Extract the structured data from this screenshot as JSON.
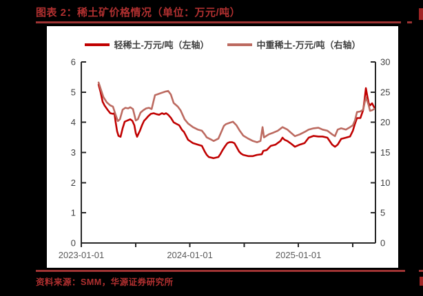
{
  "page": {
    "title": "图表 2：稀土矿价格情况（单位：万元/吨）",
    "source": "资料来源：SMM，华源证券研究所",
    "accent_color": "#b13030",
    "rule_color": "#9e3333",
    "panel_background": "#ffffff",
    "page_background": "#000000"
  },
  "chart_data": {
    "type": "line",
    "title": "稀土矿价格情况（单位：万元/吨）",
    "legend_position": "top",
    "grid": false,
    "x_range": [
      2023.0,
      2025.71
    ],
    "x_ticks": [
      {
        "t": 2023.0,
        "label": "2023-01-01"
      },
      {
        "t": 2023.5,
        "label": ""
      },
      {
        "t": 2024.0,
        "label": "2024-01-01"
      },
      {
        "t": 2024.5,
        "label": ""
      },
      {
        "t": 2025.0,
        "label": "2025-01-01"
      },
      {
        "t": 2025.5,
        "label": ""
      }
    ],
    "ylim_left": [
      0,
      6
    ],
    "y_left_ticks": [
      0,
      1,
      2,
      3,
      4,
      5,
      6
    ],
    "ylim_right": [
      0,
      30
    ],
    "y_right_ticks": [
      0,
      5,
      10,
      15,
      20,
      25,
      30
    ],
    "axis_color": "#262626",
    "y_label_color": "#3f3f3f",
    "x_label_color": "#595959",
    "series": [
      {
        "name": "轻稀土-万元/吨（左轴）",
        "axis": "left",
        "color": "#c00000",
        "points": [
          [
            2023.159,
            5.25
          ],
          [
            2023.178,
            5.0
          ],
          [
            2023.197,
            4.68
          ],
          [
            2023.216,
            4.55
          ],
          [
            2023.241,
            4.42
          ],
          [
            2023.267,
            4.3
          ],
          [
            2023.292,
            4.28
          ],
          [
            2023.305,
            4.3
          ],
          [
            2023.317,
            4.0
          ],
          [
            2023.33,
            3.7
          ],
          [
            2023.343,
            3.55
          ],
          [
            2023.362,
            3.52
          ],
          [
            2023.381,
            3.8
          ],
          [
            2023.4,
            4.02
          ],
          [
            2023.425,
            4.06
          ],
          [
            2023.451,
            4.1
          ],
          [
            2023.47,
            4.05
          ],
          [
            2023.489,
            3.9
          ],
          [
            2023.502,
            3.64
          ],
          [
            2023.514,
            3.52
          ],
          [
            2023.527,
            3.62
          ],
          [
            2023.54,
            3.72
          ],
          [
            2023.559,
            3.9
          ],
          [
            2023.578,
            4.05
          ],
          [
            2023.597,
            4.12
          ],
          [
            2023.616,
            4.2
          ],
          [
            2023.641,
            4.28
          ],
          [
            2023.667,
            4.3
          ],
          [
            2023.692,
            4.27
          ],
          [
            2023.717,
            4.25
          ],
          [
            2023.743,
            4.3
          ],
          [
            2023.762,
            4.27
          ],
          [
            2023.781,
            4.3
          ],
          [
            2023.8,
            4.25
          ],
          [
            2023.825,
            4.15
          ],
          [
            2023.851,
            4.0
          ],
          [
            2023.876,
            3.95
          ],
          [
            2023.902,
            3.9
          ],
          [
            2023.927,
            3.75
          ],
          [
            2023.946,
            3.68
          ],
          [
            2023.984,
            3.42
          ],
          [
            2024.029,
            3.31
          ],
          [
            2024.073,
            3.26
          ],
          [
            2024.111,
            3.22
          ],
          [
            2024.137,
            3.03
          ],
          [
            2024.156,
            2.92
          ],
          [
            2024.175,
            2.85
          ],
          [
            2024.219,
            2.81
          ],
          [
            2024.263,
            2.85
          ],
          [
            2024.283,
            2.96
          ],
          [
            2024.302,
            3.08
          ],
          [
            2024.327,
            3.22
          ],
          [
            2024.346,
            3.31
          ],
          [
            2024.365,
            3.34
          ],
          [
            2024.39,
            3.34
          ],
          [
            2024.41,
            3.31
          ],
          [
            2024.429,
            3.19
          ],
          [
            2024.454,
            3.03
          ],
          [
            2024.473,
            2.96
          ],
          [
            2024.492,
            2.92
          ],
          [
            2024.537,
            2.88
          ],
          [
            2024.581,
            2.88
          ],
          [
            2024.619,
            2.92
          ],
          [
            2024.663,
            2.94
          ],
          [
            2024.676,
            3.05
          ],
          [
            2024.708,
            3.08
          ],
          [
            2024.746,
            3.22
          ],
          [
            2024.79,
            3.26
          ],
          [
            2024.835,
            3.38
          ],
          [
            2024.854,
            3.49
          ],
          [
            2024.873,
            3.42
          ],
          [
            2024.898,
            3.38
          ],
          [
            2024.93,
            3.3
          ],
          [
            2024.968,
            3.19
          ],
          [
            2025.013,
            3.26
          ],
          [
            2025.057,
            3.31
          ],
          [
            2025.095,
            3.49
          ],
          [
            2025.14,
            3.55
          ],
          [
            2025.184,
            3.53
          ],
          [
            2025.222,
            3.53
          ],
          [
            2025.267,
            3.49
          ],
          [
            2025.311,
            3.26
          ],
          [
            2025.337,
            3.19
          ],
          [
            2025.362,
            3.26
          ],
          [
            2025.394,
            3.45
          ],
          [
            2025.438,
            3.49
          ],
          [
            2025.476,
            3.53
          ],
          [
            2025.502,
            3.72
          ],
          [
            2025.521,
            3.95
          ],
          [
            2025.54,
            4.14
          ],
          [
            2025.571,
            4.14
          ],
          [
            2025.597,
            4.41
          ],
          [
            2025.61,
            4.75
          ],
          [
            2025.622,
            5.13
          ],
          [
            2025.635,
            4.86
          ],
          [
            2025.648,
            4.63
          ],
          [
            2025.66,
            4.56
          ],
          [
            2025.679,
            4.63
          ],
          [
            2025.698,
            4.5
          ]
        ]
      },
      {
        "name": "中重稀土-万元/吨（右轴）",
        "axis": "right",
        "color": "#bc6a60",
        "points": [
          [
            2023.159,
            26.6
          ],
          [
            2023.178,
            25.6
          ],
          [
            2023.203,
            24.2
          ],
          [
            2023.235,
            23.3
          ],
          [
            2023.267,
            22.8
          ],
          [
            2023.292,
            22.6
          ],
          [
            2023.317,
            21.2
          ],
          [
            2023.337,
            20.2
          ],
          [
            2023.356,
            20.5
          ],
          [
            2023.381,
            22.1
          ],
          [
            2023.406,
            22.4
          ],
          [
            2023.432,
            22.3
          ],
          [
            2023.451,
            22.5
          ],
          [
            2023.476,
            22.2
          ],
          [
            2023.502,
            20.3
          ],
          [
            2023.521,
            20.5
          ],
          [
            2023.546,
            21.6
          ],
          [
            2023.571,
            22.0
          ],
          [
            2023.597,
            22.3
          ],
          [
            2023.622,
            22.4
          ],
          [
            2023.648,
            22.2
          ],
          [
            2023.679,
            24.5
          ],
          [
            2023.711,
            24.7
          ],
          [
            2023.743,
            24.9
          ],
          [
            2023.775,
            25.1
          ],
          [
            2023.8,
            25.2
          ],
          [
            2023.825,
            24.6
          ],
          [
            2023.851,
            23.2
          ],
          [
            2023.889,
            22.6
          ],
          [
            2023.914,
            22.0
          ],
          [
            2023.952,
            20.5
          ],
          [
            2023.984,
            19.8
          ],
          [
            2024.029,
            19.2
          ],
          [
            2024.073,
            18.8
          ],
          [
            2024.111,
            18.6
          ],
          [
            2024.137,
            18.0
          ],
          [
            2024.156,
            17.5
          ],
          [
            2024.2,
            17.1
          ],
          [
            2024.219,
            16.9
          ],
          [
            2024.263,
            17.3
          ],
          [
            2024.295,
            18.6
          ],
          [
            2024.314,
            19.4
          ],
          [
            2024.333,
            19.7
          ],
          [
            2024.365,
            19.9
          ],
          [
            2024.397,
            20.1
          ],
          [
            2024.429,
            19.5
          ],
          [
            2024.46,
            18.6
          ],
          [
            2024.492,
            17.8
          ],
          [
            2024.537,
            17.3
          ],
          [
            2024.581,
            16.9
          ],
          [
            2024.619,
            16.7
          ],
          [
            2024.651,
            16.9
          ],
          [
            2024.67,
            19.2
          ],
          [
            2024.683,
            17.5
          ],
          [
            2024.727,
            18.0
          ],
          [
            2024.771,
            18.3
          ],
          [
            2024.81,
            18.6
          ],
          [
            2024.854,
            19.2
          ],
          [
            2024.898,
            18.8
          ],
          [
            2024.93,
            18.3
          ],
          [
            2024.968,
            17.7
          ],
          [
            2025.013,
            18.0
          ],
          [
            2025.057,
            18.4
          ],
          [
            2025.095,
            18.8
          ],
          [
            2025.14,
            19.0
          ],
          [
            2025.184,
            19.1
          ],
          [
            2025.222,
            18.8
          ],
          [
            2025.267,
            18.6
          ],
          [
            2025.311,
            18.0
          ],
          [
            2025.337,
            17.7
          ],
          [
            2025.362,
            18.8
          ],
          [
            2025.394,
            19.0
          ],
          [
            2025.438,
            18.8
          ],
          [
            2025.476,
            19.2
          ],
          [
            2025.502,
            19.5
          ],
          [
            2025.521,
            20.3
          ],
          [
            2025.54,
            21.7
          ],
          [
            2025.571,
            21.8
          ],
          [
            2025.597,
            22.1
          ],
          [
            2025.61,
            23.2
          ],
          [
            2025.622,
            24.1
          ],
          [
            2025.635,
            23.5
          ],
          [
            2025.648,
            22.8
          ],
          [
            2025.66,
            21.9
          ],
          [
            2025.679,
            22.0
          ],
          [
            2025.698,
            22.2
          ]
        ]
      }
    ]
  }
}
